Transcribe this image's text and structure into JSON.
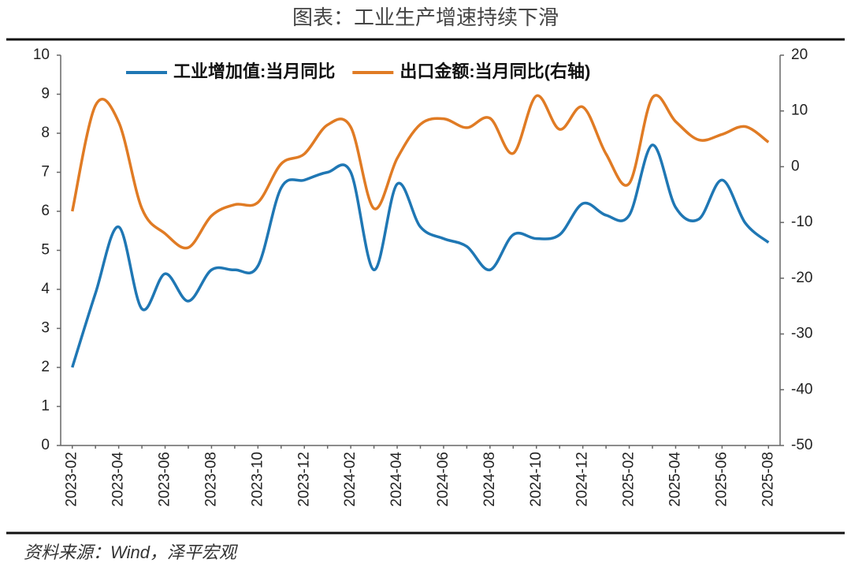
{
  "chart_data": {
    "type": "line",
    "title": "图表：工业生产增速持续下滑",
    "source": "资料来源：Wind，泽平宏观",
    "categories": [
      "2023-02",
      null,
      "2023-04",
      null,
      "2023-06",
      null,
      "2023-08",
      null,
      "2023-10",
      null,
      "2023-12",
      null,
      "2024-02",
      null,
      "2024-04",
      null,
      "2024-06",
      null,
      "2024-08",
      null,
      "2024-10",
      null,
      "2024-12",
      null,
      "2025-02",
      null,
      "2025-04",
      null,
      "2025-06",
      null,
      "2025-08"
    ],
    "series": [
      {
        "name": "工业增加值:当月同比",
        "color": "#1f77b4",
        "values": [
          2.0,
          3.9,
          5.6,
          3.5,
          4.4,
          3.7,
          4.5,
          4.5,
          4.6,
          6.6,
          6.8,
          7.0,
          7.0,
          4.5,
          6.7,
          5.6,
          5.3,
          5.1,
          4.5,
          5.4,
          5.3,
          5.4,
          6.2,
          5.9,
          5.9,
          7.7,
          6.1,
          5.8,
          6.8,
          5.7,
          5.2
        ]
      },
      {
        "name": "出口金额:当月同比(右轴)",
        "color": "#e07b24",
        "axis": "y2",
        "values": [
          -8,
          11,
          8,
          -7.5,
          -12,
          -14.5,
          -8.8,
          -6.8,
          -6.4,
          0.5,
          2.3,
          7.5,
          7.1,
          -7.5,
          1.5,
          7.6,
          8.6,
          7,
          8.7,
          2.4,
          12.7,
          6.7,
          10.7,
          2.3,
          -3,
          12.4,
          8.1,
          4.8,
          5.8,
          7.2,
          4.4
        ]
      }
    ],
    "ylim": [
      0,
      10
    ],
    "yticks": [
      0,
      1,
      2,
      3,
      4,
      5,
      6,
      7,
      8,
      9,
      10
    ],
    "y2lim": [
      -50,
      20
    ],
    "y2ticks": [
      -50,
      -40,
      -30,
      -20,
      -10,
      0,
      10,
      20
    ],
    "grid": false,
    "legend": "top"
  }
}
